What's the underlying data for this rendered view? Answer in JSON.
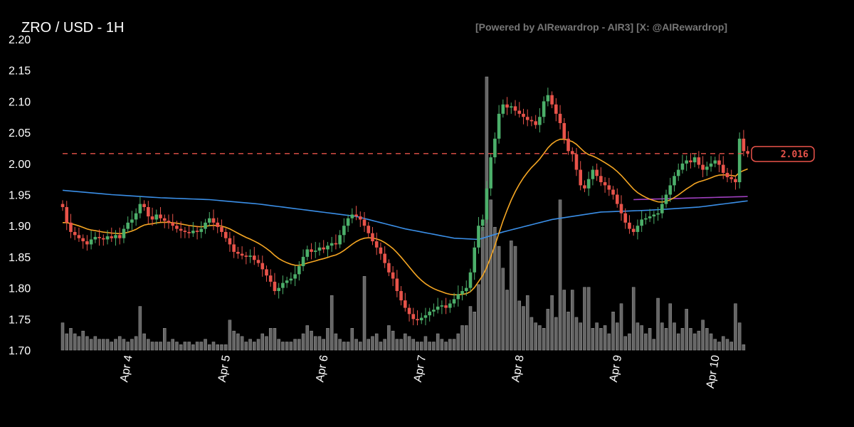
{
  "chart_data": {
    "type": "candlestick",
    "title": "ZRO / USD - 1H",
    "credit": "[Powered by AIRewardrop - AIR3] [X: @AIRewardrop]",
    "ylim": [
      1.7,
      2.2
    ],
    "yticks": [
      "1.70",
      "1.75",
      "1.80",
      "1.85",
      "1.90",
      "1.95",
      "2.00",
      "2.05",
      "2.10",
      "2.15",
      "2.20"
    ],
    "xticks": [
      "Apr 4",
      "Apr 5",
      "Apr 6",
      "Apr 7",
      "Apr 8",
      "Apr 9",
      "Apr 10"
    ],
    "xtick_hours": [
      16,
      40,
      64,
      88,
      112,
      136,
      160
    ],
    "interval": "1H",
    "last_price": 2.016,
    "last_price_label": "2.016",
    "colors": {
      "up": "#4caf6a",
      "down": "#e8534a",
      "ema": "#f5a623",
      "ma_long": "#3a8ee6",
      "ma_mid": "#a040c0",
      "volume": "#666666",
      "last_price": "#e8534a",
      "axis_text": "#ffffff"
    },
    "closes": [
      1.93,
      1.905,
      1.89,
      1.885,
      1.88,
      1.875,
      1.87,
      1.878,
      1.882,
      1.88,
      1.878,
      1.883,
      1.88,
      1.885,
      1.88,
      1.895,
      1.905,
      1.91,
      1.92,
      1.935,
      1.93,
      1.915,
      1.91,
      1.918,
      1.912,
      1.908,
      1.905,
      1.9,
      1.895,
      1.892,
      1.89,
      1.888,
      1.892,
      1.89,
      1.895,
      1.905,
      1.912,
      1.905,
      1.898,
      1.89,
      1.88,
      1.87,
      1.858,
      1.855,
      1.852,
      1.85,
      1.852,
      1.845,
      1.84,
      1.83,
      1.82,
      1.81,
      1.795,
      1.8,
      1.808,
      1.812,
      1.815,
      1.822,
      1.835,
      1.85,
      1.862,
      1.858,
      1.86,
      1.865,
      1.862,
      1.868,
      1.872,
      1.87,
      1.885,
      1.9,
      1.912,
      1.918,
      1.915,
      1.91,
      1.9,
      1.888,
      1.875,
      1.865,
      1.855,
      1.84,
      1.825,
      1.815,
      1.795,
      1.78,
      1.768,
      1.758,
      1.75,
      1.748,
      1.752,
      1.756,
      1.762,
      1.765,
      1.77,
      1.772,
      1.768,
      1.775,
      1.782,
      1.79,
      1.795,
      1.8,
      1.825,
      1.865,
      1.9,
      1.91,
      1.96,
      2.01,
      2.04,
      2.08,
      2.095,
      2.09,
      2.092,
      2.085,
      2.08,
      2.075,
      2.07,
      2.068,
      2.062,
      2.075,
      2.1,
      2.11,
      2.095,
      2.08,
      2.065,
      2.04,
      2.02,
      2.015,
      1.99,
      1.965,
      1.96,
      1.975,
      1.99,
      1.98,
      1.97,
      1.965,
      1.958,
      1.95,
      1.935,
      1.92,
      1.905,
      1.895,
      1.89,
      1.9,
      1.91,
      1.912,
      1.915,
      1.918,
      1.92,
      1.935,
      1.95,
      1.965,
      1.98,
      1.99,
      2.0,
      2.005,
      2.002,
      2.01,
      1.998,
      1.99,
      1.995,
      2.0,
      2.005,
      1.998,
      1.985,
      1.978,
      1.975,
      1.97,
      2.04,
      2.02,
      2.016
    ],
    "volumes_relative": [
      10,
      6,
      8,
      6,
      5,
      7,
      5,
      4,
      5,
      4,
      4,
      4,
      3,
      4,
      5,
      4,
      3,
      4,
      5,
      16,
      6,
      4,
      3,
      3,
      3,
      8,
      3,
      4,
      3,
      2,
      3,
      3,
      2,
      3,
      3,
      4,
      2,
      3,
      2,
      2,
      2,
      11,
      7,
      6,
      5,
      3,
      4,
      3,
      4,
      6,
      5,
      8,
      8,
      4,
      3,
      3,
      3,
      4,
      4,
      6,
      9,
      7,
      5,
      5,
      4,
      8,
      20,
      6,
      4,
      3,
      3,
      8,
      4,
      3,
      27,
      4,
      5,
      6,
      3,
      4,
      9,
      7,
      4,
      4,
      6,
      5,
      4,
      3,
      3,
      5,
      3,
      3,
      6,
      4,
      3,
      4,
      4,
      6,
      9,
      9,
      16,
      14,
      24,
      45,
      100,
      55,
      45,
      38,
      30,
      22,
      40,
      38,
      18,
      16,
      20,
      12,
      10,
      9,
      8,
      15,
      20,
      12,
      55,
      22,
      14,
      22,
      12,
      10,
      23,
      23,
      8,
      10,
      8,
      9,
      6,
      14,
      10,
      17,
      5,
      6,
      23,
      10,
      9,
      6,
      8,
      4,
      19,
      10,
      8,
      17,
      10,
      6,
      8,
      15,
      8,
      6,
      7,
      11,
      8,
      6,
      4,
      3,
      5,
      4,
      3,
      17,
      10,
      2
    ]
  },
  "indicators": {
    "ma_long": {
      "hours": [
        0,
        12,
        24,
        36,
        48,
        60,
        72,
        84,
        96,
        102,
        108,
        120,
        132,
        144,
        156,
        168
      ],
      "values": [
        1.957,
        1.95,
        1.945,
        1.942,
        1.935,
        1.925,
        1.915,
        1.895,
        1.88,
        1.878,
        1.89,
        1.91,
        1.922,
        1.925,
        1.93,
        1.94
      ]
    },
    "ma_mid": {
      "hours": [
        140,
        168
      ],
      "values": [
        1.942,
        1.947
      ]
    },
    "ema_period": 20
  }
}
